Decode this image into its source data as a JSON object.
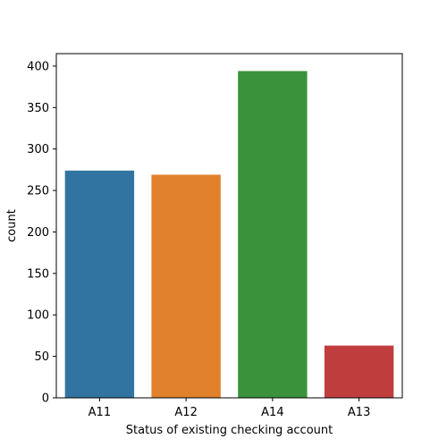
{
  "chart_data": {
    "type": "bar",
    "title": "",
    "xlabel": "Status of existing checking account",
    "ylabel": "count",
    "categories": [
      "A11",
      "A12",
      "A14",
      "A13"
    ],
    "values": [
      274,
      269,
      394,
      63
    ],
    "colors": [
      "#3274a1",
      "#e1812c",
      "#3a923a",
      "#c03d3e"
    ],
    "ylim": [
      0,
      415
    ],
    "yticks": [
      0,
      50,
      100,
      150,
      200,
      250,
      300,
      350,
      400
    ],
    "grid": false,
    "legend": "none"
  }
}
